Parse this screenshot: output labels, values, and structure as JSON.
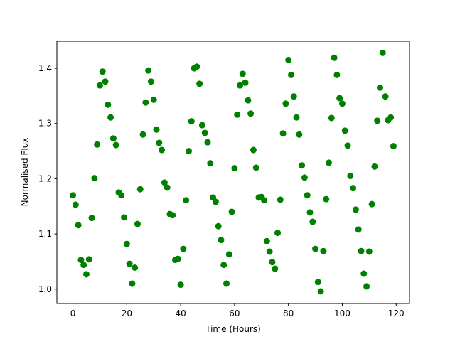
{
  "chart_data": {
    "type": "scatter",
    "xlabel": "Time (Hours)",
    "ylabel": "Normalised Flux",
    "color": "#008000",
    "grid": false,
    "x": [
      0,
      1,
      2,
      3,
      4,
      5,
      6,
      7,
      8,
      9,
      10,
      11,
      12,
      13,
      14,
      15,
      16,
      17,
      18,
      19,
      20,
      21,
      22,
      23,
      24,
      25,
      26,
      27,
      28,
      29,
      30,
      31,
      32,
      33,
      34,
      35,
      36,
      37,
      38,
      39,
      40,
      41,
      42,
      43,
      44,
      45,
      46,
      47,
      48,
      49,
      50,
      51,
      52,
      53,
      54,
      55,
      56,
      57,
      58,
      59,
      60,
      61,
      62,
      63,
      64,
      65,
      66,
      67,
      68,
      69,
      70,
      71,
      72,
      73,
      74,
      75,
      76,
      77,
      78,
      79,
      80,
      81,
      82,
      83,
      84,
      85,
      86,
      87,
      88,
      89,
      90,
      91,
      92,
      93,
      94,
      95,
      96,
      97,
      98,
      99,
      100,
      101,
      102,
      103,
      104,
      105,
      106,
      107,
      108,
      109,
      110,
      111,
      112,
      113,
      114,
      115,
      116,
      117,
      118,
      119
    ],
    "values": [
      1.17,
      1.153,
      1.116,
      1.053,
      1.044,
      1.027,
      1.054,
      1.129,
      1.201,
      1.262,
      1.369,
      1.394,
      1.376,
      1.334,
      1.311,
      1.273,
      1.261,
      1.175,
      1.17,
      1.13,
      1.082,
      1.046,
      1.01,
      1.039,
      1.118,
      1.181,
      1.28,
      1.338,
      1.396,
      1.376,
      1.343,
      1.289,
      1.265,
      1.252,
      1.193,
      1.184,
      1.136,
      1.134,
      1.053,
      1.055,
      1.008,
      1.073,
      1.161,
      1.25,
      1.304,
      1.4,
      1.403,
      1.372,
      1.297,
      1.283,
      1.266,
      1.228,
      1.166,
      1.158,
      1.114,
      1.089,
      1.044,
      1.01,
      1.063,
      1.14,
      1.219,
      1.316,
      1.369,
      1.39,
      1.374,
      1.342,
      1.318,
      1.252,
      1.22,
      1.166,
      1.167,
      1.161,
      1.087,
      1.068,
      1.049,
      1.037,
      1.102,
      1.162,
      1.282,
      1.336,
      1.415,
      1.388,
      1.349,
      1.311,
      1.28,
      1.224,
      1.202,
      1.17,
      1.139,
      1.122,
      1.073,
      1.013,
      0.996,
      1.069,
      1.163,
      1.229,
      1.31,
      1.419,
      1.388,
      1.346,
      1.336,
      1.287,
      1.26,
      1.205,
      1.183,
      1.144,
      1.108,
      1.069,
      1.028,
      1.005,
      1.068,
      1.154,
      1.222,
      1.305,
      1.365,
      1.428,
      1.349,
      1.306,
      1.311,
      1.259
    ],
    "xlim": [
      -5.95,
      124.95
    ],
    "xticks": [
      0,
      20,
      40,
      60,
      80,
      100,
      120
    ],
    "ylim": [
      0.974,
      1.449
    ],
    "yticks": [
      {
        "value": 1,
        "label": "1.0"
      },
      1.1,
      1.2,
      1.3,
      1.4
    ]
  }
}
